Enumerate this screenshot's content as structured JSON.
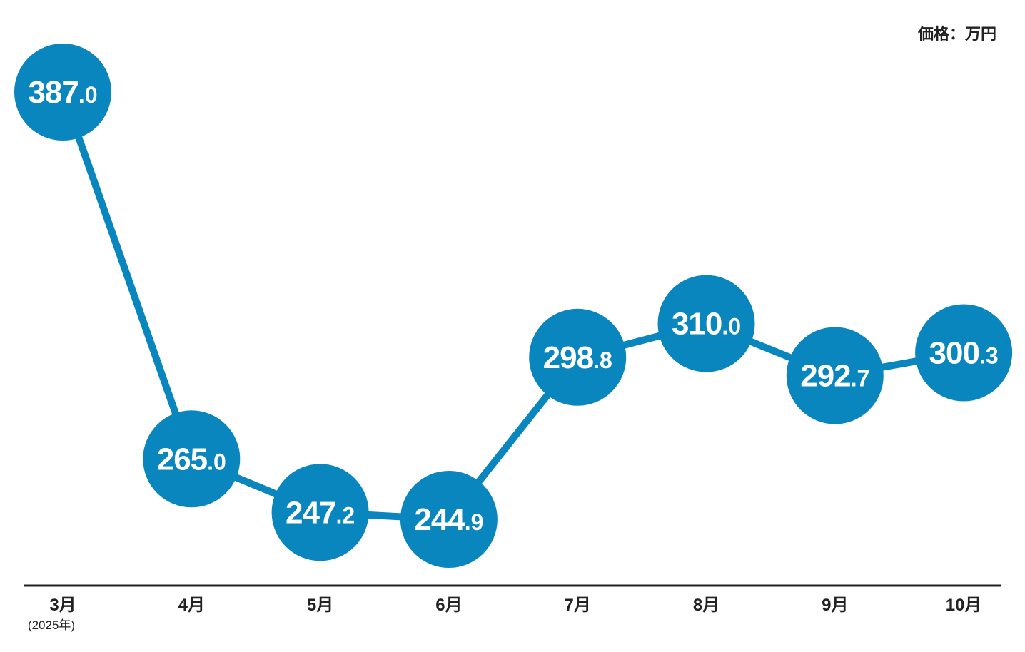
{
  "unit_label": "価格：万円",
  "colors": {
    "series": "#0A86BE",
    "axis": "#222222",
    "label_text": "#ffffff"
  },
  "chart_data": {
    "type": "line",
    "categories": [
      "3月",
      "4月",
      "5月",
      "6月",
      "7月",
      "8月",
      "9月",
      "10月"
    ],
    "category_notes": [
      "(2025年)",
      "",
      "",
      "",
      "",
      "",
      "",
      ""
    ],
    "values": [
      387.0,
      265.0,
      247.2,
      244.9,
      298.8,
      310.0,
      292.7,
      300.3
    ],
    "value_labels": [
      {
        "main": "387",
        "decimal": ".0"
      },
      {
        "main": "265",
        "decimal": ".0"
      },
      {
        "main": "247",
        "decimal": ".2"
      },
      {
        "main": "244",
        "decimal": ".9"
      },
      {
        "main": "298",
        "decimal": ".8"
      },
      {
        "main": "310",
        "decimal": ".0"
      },
      {
        "main": "292",
        "decimal": ".7"
      },
      {
        "main": "300",
        "decimal": ".3"
      }
    ],
    "title": "",
    "xlabel": "",
    "ylabel": "",
    "unit": "価格：万円",
    "grid": false,
    "legend": false
  }
}
